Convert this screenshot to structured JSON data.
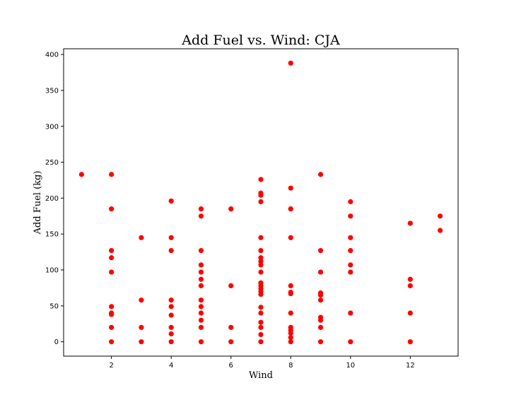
{
  "chart_data": {
    "type": "scatter",
    "title": "Add Fuel vs. Wind: CJA",
    "xlabel": "Wind",
    "ylabel": "Add Fuel (kg)",
    "xlim": [
      0.4,
      13.6
    ],
    "ylim": [
      -20,
      408
    ],
    "xticks": [
      2,
      4,
      6,
      8,
      10,
      12
    ],
    "yticks": [
      0,
      50,
      100,
      150,
      200,
      250,
      300,
      350,
      400
    ],
    "grid": false,
    "marker_color": "#ff0000",
    "points": [
      [
        1,
        233
      ],
      [
        2,
        233
      ],
      [
        2,
        185
      ],
      [
        2,
        127
      ],
      [
        2,
        117
      ],
      [
        2,
        97
      ],
      [
        2,
        49
      ],
      [
        2,
        40
      ],
      [
        2,
        38
      ],
      [
        2,
        20
      ],
      [
        2,
        0
      ],
      [
        3,
        145
      ],
      [
        3,
        58
      ],
      [
        3,
        20
      ],
      [
        3,
        0
      ],
      [
        4,
        196
      ],
      [
        4,
        145
      ],
      [
        4,
        127
      ],
      [
        4,
        58
      ],
      [
        4,
        49
      ],
      [
        4,
        37
      ],
      [
        4,
        20
      ],
      [
        4,
        11
      ],
      [
        4,
        0
      ],
      [
        5,
        185
      ],
      [
        5,
        175
      ],
      [
        5,
        127
      ],
      [
        5,
        107
      ],
      [
        5,
        97
      ],
      [
        5,
        87
      ],
      [
        5,
        78
      ],
      [
        5,
        58
      ],
      [
        5,
        49
      ],
      [
        5,
        40
      ],
      [
        5,
        30
      ],
      [
        5,
        20
      ],
      [
        5,
        0
      ],
      [
        6,
        185
      ],
      [
        6,
        78
      ],
      [
        6,
        20
      ],
      [
        6,
        0
      ],
      [
        7,
        226
      ],
      [
        7,
        207
      ],
      [
        7,
        204
      ],
      [
        7,
        195
      ],
      [
        7,
        145
      ],
      [
        7,
        127
      ],
      [
        7,
        117
      ],
      [
        7,
        112
      ],
      [
        7,
        107
      ],
      [
        7,
        97
      ],
      [
        7,
        82
      ],
      [
        7,
        78
      ],
      [
        7,
        74
      ],
      [
        7,
        70
      ],
      [
        7,
        66
      ],
      [
        7,
        48
      ],
      [
        7,
        40
      ],
      [
        7,
        27
      ],
      [
        7,
        20
      ],
      [
        7,
        10
      ],
      [
        7,
        0
      ],
      [
        8,
        388
      ],
      [
        8,
        214
      ],
      [
        8,
        185
      ],
      [
        8,
        145
      ],
      [
        8,
        78
      ],
      [
        8,
        69
      ],
      [
        8,
        67
      ],
      [
        8,
        40
      ],
      [
        8,
        20
      ],
      [
        8,
        16
      ],
      [
        8,
        12
      ],
      [
        8,
        6
      ],
      [
        8,
        0
      ],
      [
        9,
        233
      ],
      [
        9,
        127
      ],
      [
        9,
        97
      ],
      [
        9,
        68
      ],
      [
        9,
        65
      ],
      [
        9,
        58
      ],
      [
        9,
        34
      ],
      [
        9,
        30
      ],
      [
        9,
        20
      ],
      [
        9,
        0
      ],
      [
        10,
        195
      ],
      [
        10,
        175
      ],
      [
        10,
        145
      ],
      [
        10,
        127
      ],
      [
        10,
        107
      ],
      [
        10,
        97
      ],
      [
        10,
        40
      ],
      [
        10,
        0
      ],
      [
        12,
        165
      ],
      [
        12,
        87
      ],
      [
        12,
        78
      ],
      [
        12,
        40
      ],
      [
        12,
        0
      ],
      [
        13,
        175
      ],
      [
        13,
        155
      ]
    ]
  }
}
